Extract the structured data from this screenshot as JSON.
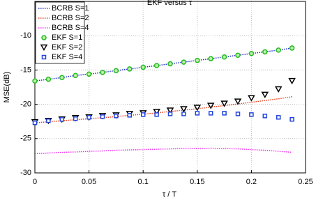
{
  "chart_data": {
    "type": "line",
    "title": "EKF versus τ",
    "x_label": "τ / T",
    "y_label": "MSE(dB)",
    "x": [
      0,
      0.0125,
      0.025,
      0.0375,
      0.05,
      0.0625,
      0.075,
      0.0875,
      0.1,
      0.1125,
      0.125,
      0.1375,
      0.15,
      0.1625,
      0.175,
      0.1875,
      0.2,
      0.2125,
      0.225,
      0.2375
    ],
    "xlim": [
      0,
      0.25
    ],
    "xticks": [
      0,
      0.05,
      0.1,
      0.15,
      0.2,
      0.25
    ],
    "ylim": [
      -30,
      -5
    ],
    "yticks": [
      -30,
      -25,
      -20,
      -15,
      -10
    ],
    "grid": true,
    "legend": "upper-left",
    "series": [
      {
        "name": "BCRB S=1",
        "color": "#2233cc",
        "style": "line",
        "values": [
          -16.6,
          -16.35,
          -16.1,
          -15.8,
          -15.6,
          -15.35,
          -15.1,
          -14.85,
          -14.6,
          -14.35,
          -14.1,
          -13.85,
          -13.6,
          -13.35,
          -13.1,
          -12.85,
          -12.6,
          -12.35,
          -12.1,
          -11.8
        ]
      },
      {
        "name": "BCRB S=2",
        "color": "#e8401c",
        "style": "line",
        "values": [
          -22.7,
          -22.55,
          -22.4,
          -22.25,
          -22.1,
          -21.95,
          -21.8,
          -21.6,
          -21.45,
          -21.25,
          -21.05,
          -20.85,
          -20.65,
          -20.4,
          -20.2,
          -19.95,
          -19.7,
          -19.45,
          -19.2,
          -18.9
        ]
      },
      {
        "name": "BCRB S=4",
        "color": "#ee33ee",
        "style": "line",
        "values": [
          -27.2,
          -27.1,
          -27.0,
          -26.95,
          -26.85,
          -26.8,
          -26.7,
          -26.65,
          -26.6,
          -26.55,
          -26.5,
          -26.45,
          -26.45,
          -26.4,
          -26.45,
          -26.5,
          -26.6,
          -26.7,
          -26.85,
          -27.0
        ]
      },
      {
        "name": "EKF S=1",
        "color": "#22bb22",
        "style": "circle",
        "values": [
          -16.6,
          -16.35,
          -16.1,
          -15.8,
          -15.6,
          -15.35,
          -15.1,
          -14.85,
          -14.6,
          -14.35,
          -14.1,
          -13.85,
          -13.6,
          -13.35,
          -13.1,
          -12.85,
          -12.6,
          -12.35,
          -12.1,
          -11.8
        ]
      },
      {
        "name": "EKF S=2",
        "color": "#000000",
        "style": "triangle",
        "values": [
          -22.6,
          -22.4,
          -22.2,
          -22.0,
          -21.9,
          -21.7,
          -21.6,
          -21.4,
          -21.3,
          -21.1,
          -20.9,
          -20.7,
          -20.5,
          -20.2,
          -19.9,
          -19.6,
          -19.1,
          -18.6,
          -17.8,
          -16.6
        ]
      },
      {
        "name": "EKF S=4",
        "color": "#2244dd",
        "style": "square",
        "values": [
          -22.7,
          -22.4,
          -22.2,
          -22.1,
          -21.9,
          -21.8,
          -21.7,
          -21.6,
          -21.5,
          -21.5,
          -21.4,
          -21.4,
          -21.3,
          -21.3,
          -21.3,
          -21.4,
          -21.5,
          -21.7,
          -21.9,
          -22.2
        ]
      }
    ]
  }
}
